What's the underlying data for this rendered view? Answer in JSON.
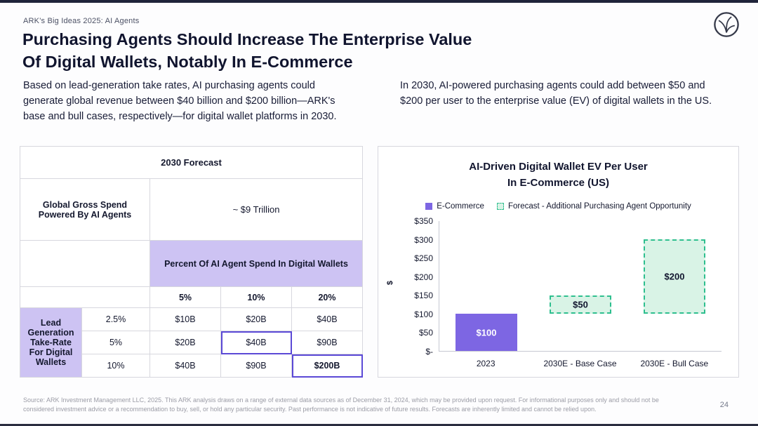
{
  "meta": {
    "eyebrow": "ARK's Big Ideas 2025: AI Agents",
    "title_line1": "Purchasing Agents Should Increase The Enterprise Value",
    "title_line2": "Of Digital Wallets, Notably In E-Commerce",
    "page_number": "24"
  },
  "intro": {
    "left": "Based on lead-generation take rates, AI purchasing agents could generate global revenue between $40 billion and $200 billion—ARK's base and bull cases, respectively—for digital wallet platforms in 2030.",
    "right": "In 2030, AI-powered purchasing agents could add between $50 and $200 per user to the enterprise value (EV) of digital wallets in the US."
  },
  "table": {
    "title": "2030 Forecast",
    "gross_spend_label": "Global Gross Spend Powered By AI Agents",
    "gross_spend_value": "~ $9 Trillion",
    "percent_header": "Percent Of AI Agent Spend In Digital Wallets",
    "col_headers": [
      "5%",
      "10%",
      "20%"
    ],
    "row_label": "Lead Generation Take-Rate For Digital Wallets",
    "rows": [
      {
        "rate": "2.5%",
        "values": [
          "$10B",
          "$20B",
          "$40B"
        ]
      },
      {
        "rate": "5%",
        "values": [
          "$20B",
          "$40B",
          "$90B"
        ]
      },
      {
        "rate": "10%",
        "values": [
          "$40B",
          "$90B",
          "$200B"
        ]
      }
    ],
    "highlighted_cells": [
      "$40B at 5% / 10%",
      "$200B at 10% / 20%"
    ]
  },
  "chart_data": {
    "type": "bar",
    "title": "AI-Driven Digital Wallet EV Per User In E-Commerce (US)",
    "title_lines": [
      "AI-Driven Digital Wallet EV Per User",
      "In E-Commerce (US)"
    ],
    "legend": [
      "E-Commerce",
      "Forecast - Additional Purchasing Agent Opportunity"
    ],
    "legend_position": "top",
    "ylabel": "$",
    "ylim": [
      0,
      350
    ],
    "grid": false,
    "y_ticks": [
      "$350",
      "$300",
      "$250",
      "$200",
      "$150",
      "$100",
      "$50",
      "$-"
    ],
    "y_tick_values": [
      350,
      300,
      250,
      200,
      150,
      100,
      50,
      0
    ],
    "categories": [
      "2023",
      "2030E - Base Case",
      "2030E - Bull Case"
    ],
    "series": [
      {
        "name": "E-Commerce",
        "values": [
          100,
          0,
          0
        ]
      },
      {
        "name": "Forecast - Additional Purchasing Agent Opportunity",
        "values": [
          0,
          50,
          200
        ],
        "stacked_on": [
          0,
          100,
          100
        ]
      }
    ],
    "bars": [
      {
        "category": "2023",
        "series": "E-Commerce",
        "style": "solid",
        "start": 0,
        "value": 100,
        "label": "$100"
      },
      {
        "category": "2030E - Base Case",
        "series": "Forecast - Additional Purchasing Agent Opportunity",
        "style": "dashed",
        "start": 100,
        "value": 50,
        "label": "$50"
      },
      {
        "category": "2030E - Bull Case",
        "series": "Forecast - Additional Purchasing Agent Opportunity",
        "style": "dashed",
        "start": 100,
        "value": 200,
        "label": "$200"
      }
    ]
  },
  "footer": {
    "source": "Source: ARK Investment Management LLC, 2025. This ARK analysis draws on a range of external data sources as of December 31, 2024, which may be provided upon request. For informational purposes only and should not be considered investment advice or a recommendation to buy, sell, or hold any particular security. Past performance is not indicative of future results. Forecasts are inherently limited and cannot be relied upon."
  },
  "colors": {
    "navy_text": "#10142e",
    "purple_bar": "#7d66e3",
    "purple_cell": "#cdc3f3",
    "highlight_border": "#5b49d6",
    "green_fill": "#d9f3e6",
    "green_stroke": "#2fbf8f"
  }
}
